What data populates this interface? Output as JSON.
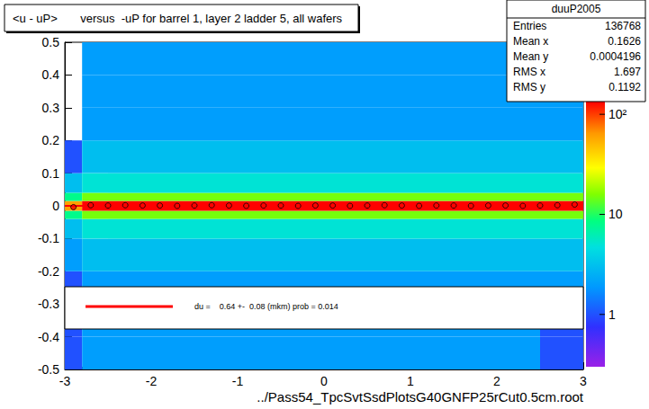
{
  "chart_data": {
    "type": "heatmap",
    "title": "<u - uP>       versus  -uP for barrel 1, layer 2 ladder 5, all wafers",
    "x_label": "../Pass54_TpcSvtSsdPlotsG40GNFP25rCut0.5cm.root",
    "xlim": [
      -3,
      3
    ],
    "ylim": [
      -0.5,
      0.5
    ],
    "xticks": [
      -3,
      -2,
      -1,
      0,
      1,
      2,
      3
    ],
    "yticks": [
      -0.5,
      -0.4,
      -0.3,
      -0.2,
      -0.1,
      0,
      0.1,
      0.2,
      0.3,
      0.4,
      0.5
    ],
    "grid": false,
    "x_edges": [
      -3,
      -2.8,
      -2.5,
      -2,
      -1.5,
      -1,
      -0.5,
      0,
      0.5,
      1,
      1.5,
      2,
      2.5,
      3
    ],
    "y_edges": [
      -0.5,
      -0.4,
      -0.3,
      -0.2,
      -0.1,
      -0.04,
      -0.015,
      0.015,
      0.04,
      0.1,
      0.2,
      0.3,
      0.4,
      0.5
    ],
    "counts": [
      [
        1,
        2,
        2,
        2,
        2,
        2,
        2,
        2,
        2,
        2,
        2,
        2,
        1
      ],
      [
        1,
        2,
        2,
        2,
        2,
        2,
        2,
        2,
        2,
        2,
        2,
        2,
        1
      ],
      [
        1,
        2,
        2,
        2,
        2,
        2,
        2,
        2,
        2,
        2,
        2,
        2,
        2
      ],
      [
        2,
        3,
        3,
        3,
        3,
        3,
        3,
        3,
        3,
        3,
        3,
        3,
        3
      ],
      [
        3,
        5,
        5,
        5,
        5,
        5,
        5,
        5,
        5,
        5,
        5,
        5,
        5
      ],
      [
        8,
        15,
        15,
        15,
        15,
        15,
        15,
        15,
        15,
        15,
        15,
        15,
        15
      ],
      [
        60,
        150,
        150,
        150,
        150,
        150,
        150,
        150,
        150,
        150,
        150,
        150,
        150
      ],
      [
        8,
        15,
        15,
        15,
        15,
        15,
        15,
        15,
        15,
        15,
        15,
        15,
        15
      ],
      [
        3,
        5,
        5,
        5,
        5,
        5,
        5,
        5,
        5,
        5,
        5,
        5,
        5
      ],
      [
        1,
        3,
        3,
        3,
        3,
        3,
        3,
        3,
        3,
        3,
        3,
        3,
        3
      ],
      [
        null,
        2,
        2,
        2,
        2,
        2,
        2,
        2,
        2,
        2,
        2,
        2,
        2
      ],
      [
        null,
        2,
        2,
        2,
        2,
        2,
        2,
        2,
        2,
        2,
        2,
        2,
        2
      ],
      [
        null,
        2,
        2,
        2,
        2,
        2,
        2,
        2,
        2,
        2,
        2,
        2,
        2
      ]
    ],
    "color_bar": {
      "zlim": [
        0.3,
        134
      ],
      "zticks": [
        1,
        10,
        {
          "value": 100,
          "label": "10²"
        }
      ]
    },
    "profile": {
      "marker": "circle",
      "color": "#000000",
      "x": [
        -2.9,
        -2.7,
        -2.5,
        -2.3,
        -2.1,
        -1.9,
        -1.7,
        -1.5,
        -1.3,
        -1.1,
        -0.9,
        -0.7,
        -0.5,
        -0.3,
        -0.1,
        0.1,
        0.3,
        0.5,
        0.7,
        0.9,
        1.1,
        1.3,
        1.5,
        1.7,
        1.9,
        2.1,
        2.3,
        2.5,
        2.7,
        2.9
      ],
      "values": [
        -0.004,
        0.002,
        0.001,
        0.002,
        0.001,
        0.001,
        0,
        0.001,
        0.002,
        0.001,
        0,
        0.001,
        0.001,
        0,
        0.001,
        0.001,
        0,
        0.001,
        0.002,
        0.001,
        0,
        0.001,
        0.001,
        0,
        0.001,
        0.001,
        0,
        0.001,
        0.002,
        0.004
      ]
    },
    "fit": {
      "label": "du =    0.64 +-  0.08 (mkm) prob = 0.014",
      "color": "#ff0000",
      "x": [
        -3,
        3
      ],
      "values": [
        6.4e-05,
        6.4e-05
      ]
    },
    "stats": {
      "name": "duuP2005",
      "rows": [
        [
          "Entries",
          "136768"
        ],
        [
          "Mean x",
          "0.1626"
        ],
        [
          "Mean y",
          "0.0004196"
        ],
        [
          "RMS x",
          "1.697"
        ],
        [
          "RMS y",
          "0.1192"
        ]
      ]
    }
  }
}
